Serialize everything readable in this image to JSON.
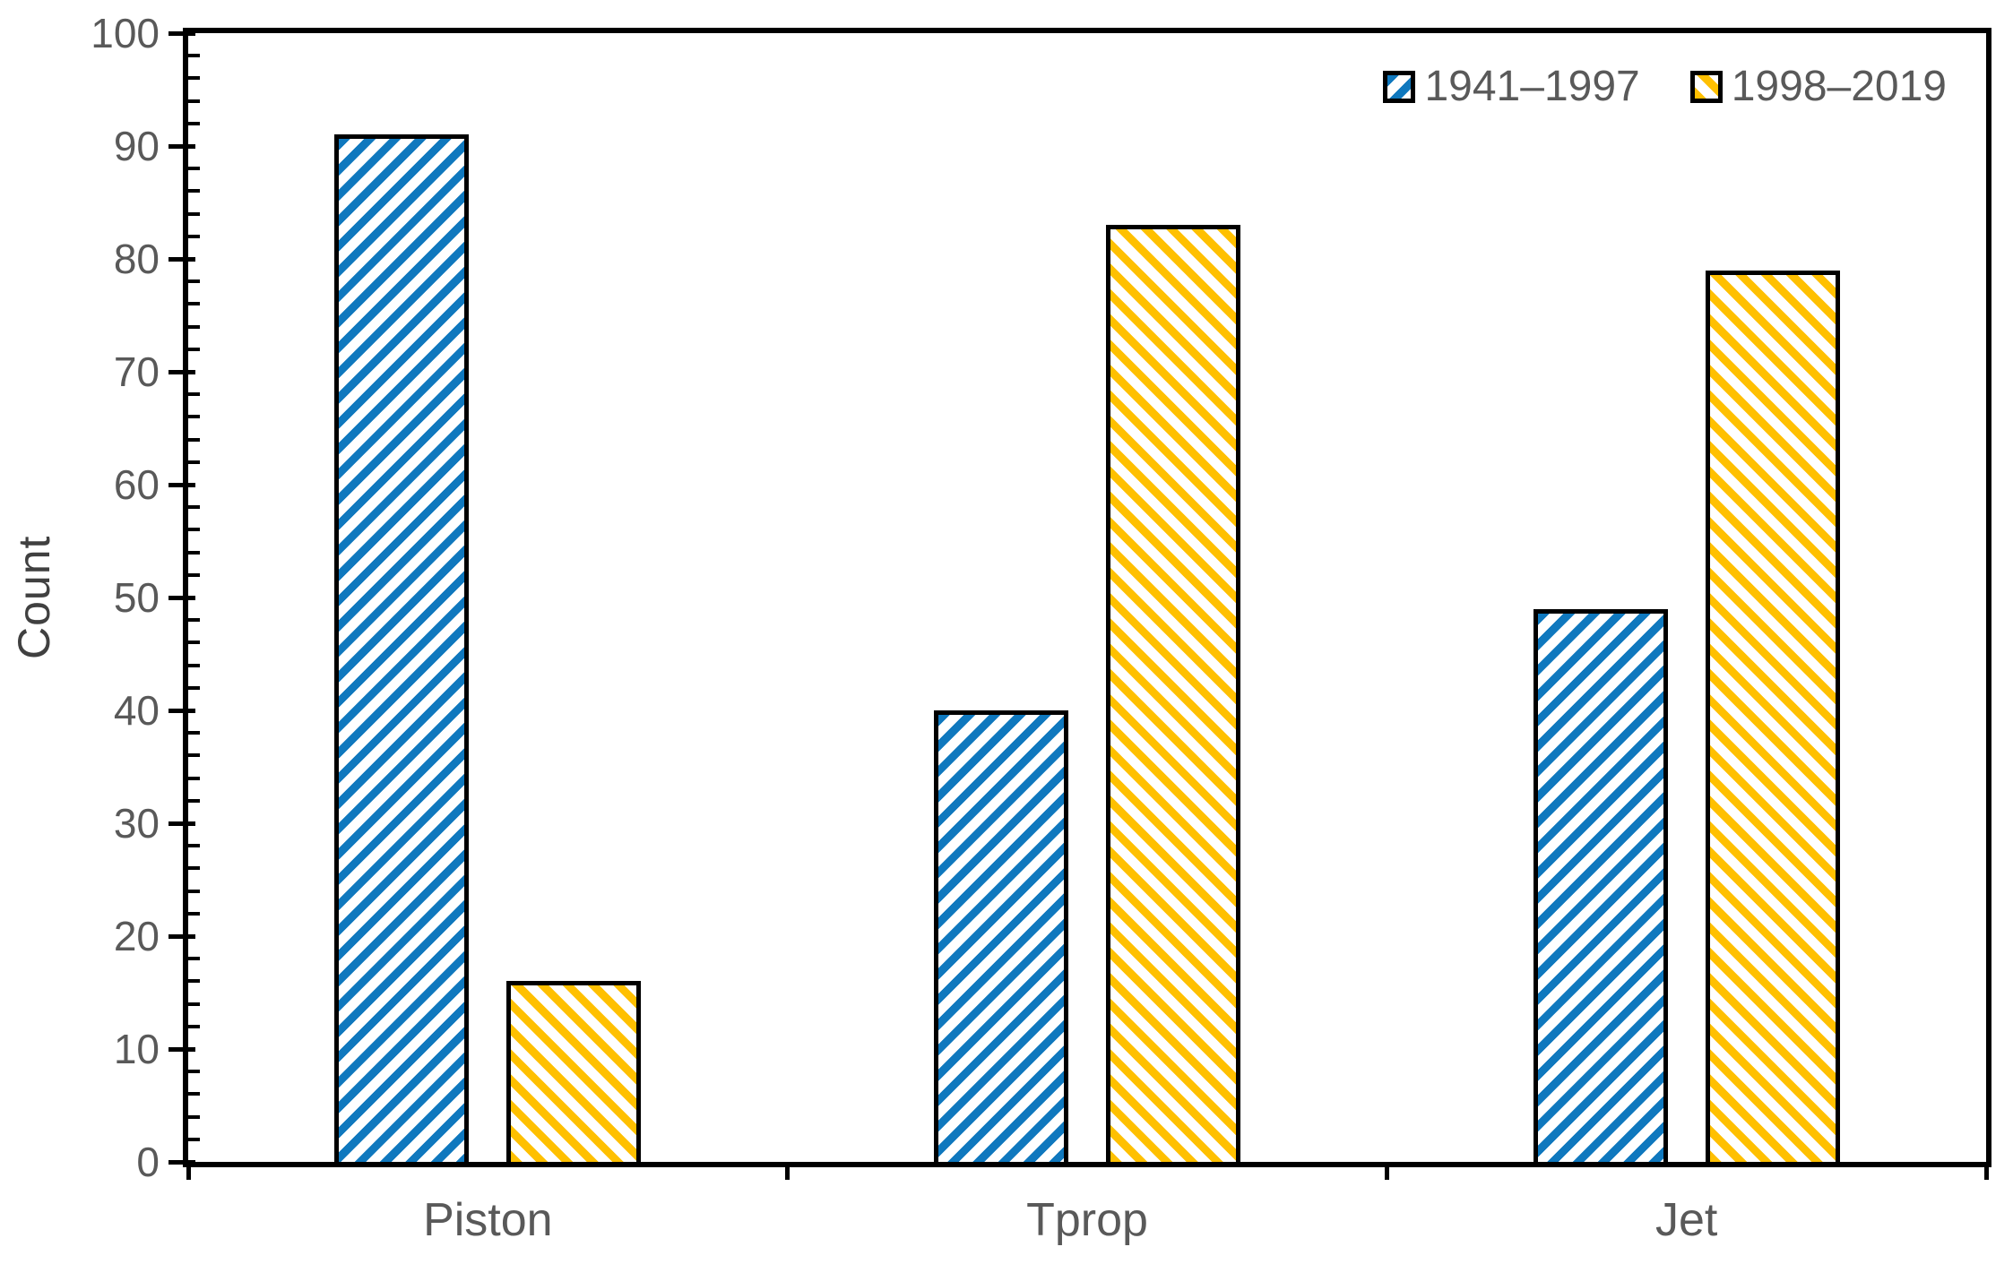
{
  "chart_data": {
    "type": "bar",
    "title": "",
    "xlabel": "",
    "ylabel": "Count",
    "categories": [
      "Piston",
      "Tprop",
      "Jet"
    ],
    "series": [
      {
        "name": "1941–1997",
        "color": "#0F78BE",
        "hatch": "forward-diagonal",
        "values": [
          91,
          40,
          49
        ]
      },
      {
        "name": "1998–2019",
        "color": "#FFC000",
        "hatch": "backward-diagonal",
        "values": [
          16,
          83,
          79
        ]
      }
    ],
    "ylim": [
      0,
      100
    ],
    "yticks": [
      0,
      10,
      20,
      30,
      40,
      50,
      60,
      70,
      80,
      90,
      100
    ],
    "ytick_interval": 10,
    "yminor_interval": 2,
    "grid": false,
    "plot_border": true,
    "legend_position": "top-right-inside",
    "axis_color": "#000000",
    "bar_outline_color": "#000000",
    "tick_label_color": "#595959",
    "axis_title_color": "#404040",
    "background_color": "#FFFFFF"
  }
}
